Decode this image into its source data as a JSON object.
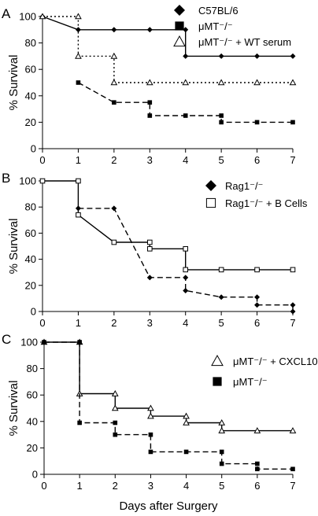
{
  "chart_data": [
    {
      "type": "line",
      "panel": "A",
      "title": "",
      "xlabel": "",
      "ylabel": "% Survival",
      "xlim": [
        0,
        7
      ],
      "ylim": [
        0,
        100
      ],
      "xticks": [
        "0",
        "1",
        "2",
        "3",
        "4",
        "5",
        "6",
        "7"
      ],
      "yticks": [
        "0",
        "20",
        "40",
        "60",
        "80",
        "100"
      ],
      "grid": false,
      "legend_position": "top-right",
      "series": [
        {
          "name": "C57BL/6",
          "marker": "diamond",
          "line": "solid",
          "color": "#000000",
          "x": [
            0,
            1,
            2,
            3,
            4,
            4,
            5,
            6,
            7
          ],
          "y": [
            100,
            90,
            90,
            90,
            90,
            70,
            70,
            70,
            70
          ]
        },
        {
          "name": "μMT⁻/⁻",
          "marker": "square",
          "line": "dashed",
          "color": "#000000",
          "x": [
            1,
            2,
            3,
            3,
            4,
            5,
            5,
            6,
            7
          ],
          "y": [
            50,
            35,
            35,
            25,
            25,
            25,
            20,
            20,
            20
          ]
        },
        {
          "name": "μMT⁻/⁻ + WT serum",
          "marker": "triangle-open",
          "line": "dotted",
          "color": "#000000",
          "x": [
            0,
            1,
            1,
            2,
            2,
            3,
            4,
            5,
            6,
            7
          ],
          "y": [
            100,
            100,
            70,
            70,
            50,
            50,
            50,
            50,
            50,
            50
          ]
        }
      ]
    },
    {
      "type": "line",
      "panel": "B",
      "title": "",
      "xlabel": "",
      "ylabel": "% Survival",
      "xlim": [
        0,
        7
      ],
      "ylim": [
        0,
        100
      ],
      "xticks": [
        "0",
        "1",
        "2",
        "3",
        "4",
        "5",
        "6",
        "7"
      ],
      "yticks": [
        "0",
        "20",
        "40",
        "60",
        "80",
        "100"
      ],
      "grid": false,
      "legend_position": "top-right",
      "series": [
        {
          "name": "Rag1⁻/⁻",
          "marker": "diamond",
          "line": "dashed",
          "color": "#000000",
          "x": [
            1,
            2,
            3,
            4,
            4,
            5,
            6,
            6,
            7,
            7
          ],
          "y": [
            79,
            79,
            26,
            26,
            16,
            11,
            11,
            5,
            5,
            0
          ]
        },
        {
          "name": "Rag1⁻/⁻ + B Cells",
          "marker": "square-open",
          "line": "solid",
          "color": "#000000",
          "x": [
            0,
            1,
            1,
            2,
            3,
            3,
            4,
            4,
            5,
            6,
            7
          ],
          "y": [
            100,
            100,
            74,
            53,
            53,
            48,
            48,
            32,
            32,
            32,
            32
          ]
        }
      ]
    },
    {
      "type": "line",
      "panel": "C",
      "title": "",
      "xlabel": "Days after Surgery",
      "ylabel": "% Survival",
      "xlim": [
        0,
        7
      ],
      "ylim": [
        0,
        100
      ],
      "xticks": [
        "0",
        "1",
        "2",
        "3",
        "4",
        "5",
        "6",
        "7"
      ],
      "yticks": [
        "0",
        "20",
        "40",
        "60",
        "80",
        "100"
      ],
      "grid": false,
      "legend_position": "top-right",
      "series": [
        {
          "name": "μMT⁻/⁻ + CXCL10",
          "marker": "triangle-open",
          "line": "solid",
          "color": "#000000",
          "x": [
            0,
            1,
            1,
            2,
            2,
            3,
            3,
            4,
            4,
            5,
            5,
            6,
            7
          ],
          "y": [
            100,
            100,
            61,
            61,
            50,
            50,
            44,
            44,
            39,
            39,
            33,
            33,
            33
          ]
        },
        {
          "name": "μMT⁻/⁻",
          "marker": "square",
          "line": "dashed",
          "color": "#000000",
          "x": [
            0,
            1,
            1,
            2,
            2,
            3,
            3,
            4,
            5,
            5,
            6,
            6,
            7
          ],
          "y": [
            100,
            100,
            39,
            39,
            30,
            30,
            17,
            17,
            17,
            8,
            8,
            4,
            4
          ]
        }
      ]
    }
  ]
}
